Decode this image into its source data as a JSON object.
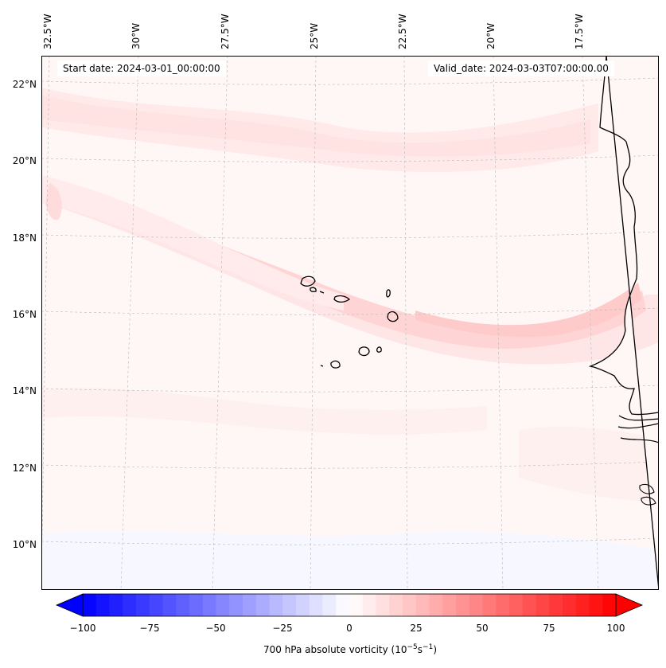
{
  "map": {
    "start_date_label": "Start date: 2024-03-01_00:00:00",
    "valid_date_label": "Valid_date: 2024-03-03T07:00:00.00",
    "lon_labels": [
      "32.5°W",
      "30°W",
      "27.5°W",
      "25°W",
      "22.5°W",
      "20°W",
      "17.5°W"
    ],
    "lat_labels": [
      "22°N",
      "20°N",
      "18°N",
      "16°N",
      "14°N",
      "12°N",
      "10°N"
    ]
  },
  "colorbar": {
    "label": "700 hPa absolute vorticity (10",
    "label_exp": "−5",
    "label_unit": "s",
    "label_exp2": "−1",
    "label_end": ")",
    "min": -100,
    "max": 100,
    "ticks": [
      "−100",
      "−75",
      "−50",
      "−25",
      "0",
      "25",
      "50",
      "75",
      "100"
    ],
    "low_color": "#0000ff",
    "high_color": "#ff0000"
  }
}
